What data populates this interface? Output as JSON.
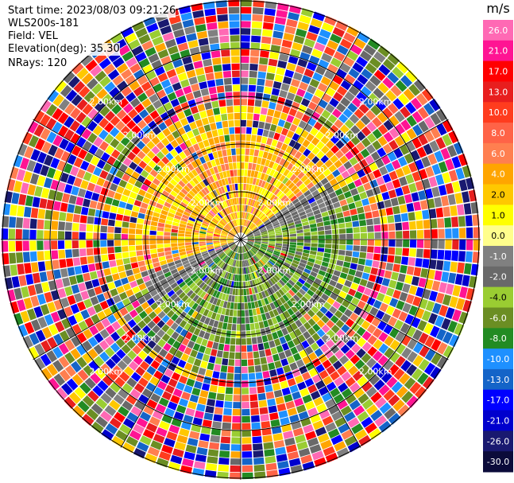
{
  "header": {
    "start_time": "Start time: 2023/08/03 09:21:26",
    "instrument": "WLS200s-181",
    "field": "Field: VEL",
    "elevation": "Elevation(deg): 35.30",
    "nrays": "NRays: 120"
  },
  "chart_data": {
    "type": "heatmap",
    "projection": "polar-ppi",
    "field": "VEL",
    "nrays": 120,
    "range_ring_labels": [
      "2.00km",
      "2.00km",
      "2.00km",
      "2.00km"
    ],
    "colorbar": {
      "unit": "m/s",
      "ticks": [
        "26.0",
        "21.0",
        "17.0",
        "13.0",
        "10.0",
        "8.0",
        "6.0",
        "4.0",
        "2.0",
        "1.0",
        "0.0",
        "-1.0",
        "-2.0",
        "-4.0",
        "-6.0",
        "-8.0",
        "-10.0",
        "-13.0",
        "-17.0",
        "-21.0",
        "-26.0",
        "-30.0"
      ],
      "colors": [
        "#ff69b4",
        "#ff1493",
        "#ff0000",
        "#e81e1e",
        "#ff3c1e",
        "#ff6347",
        "#ff7f50",
        "#ffa500",
        "#ffc800",
        "#ffff00",
        "#fffe8c",
        "#808080",
        "#696969",
        "#9acd32",
        "#6b8e23",
        "#228b22",
        "#1e90ff",
        "#1464c8",
        "#0000ff",
        "#0000cd",
        "#191970",
        "#0b0b3a"
      ]
    },
    "pattern": {
      "near_range_upwind_side": "positive (yellow/orange)",
      "near_range_downwind_side": "negative (green/gray)",
      "far_range": "noise (mixed colors)"
    }
  }
}
